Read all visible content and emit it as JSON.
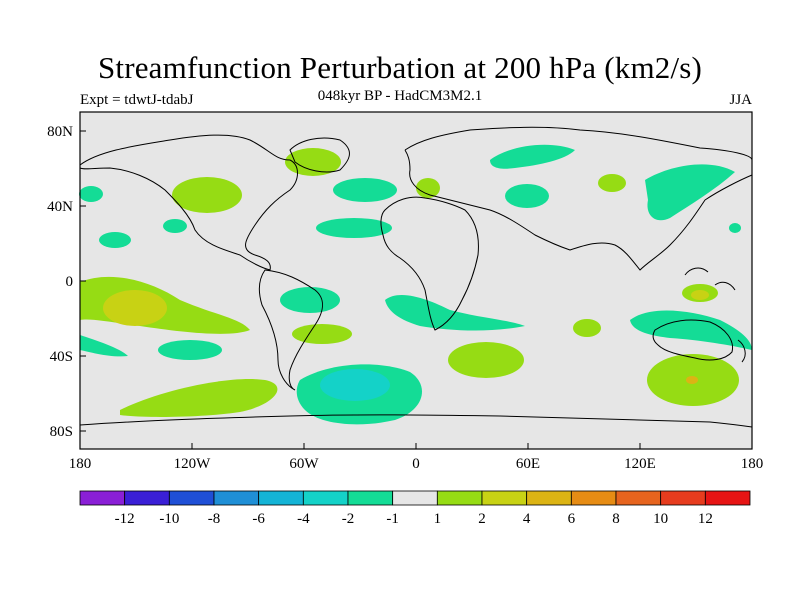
{
  "title": "Streamfunction Perturbation at 200 hPa (km2/s)",
  "subtitle_left": "Expt = tdwtJ-tdabJ",
  "subtitle_center": "048kyr BP - HadCM3M2.1",
  "subtitle_right": "JJA",
  "lat_labels": [
    "80N",
    "40N",
    "0",
    "40S",
    "80S"
  ],
  "lon_labels": [
    "180",
    "120W",
    "60W",
    "0",
    "60E",
    "120E",
    "180"
  ],
  "colorbar": {
    "labels": [
      "-12",
      "-10",
      "-8",
      "-6",
      "-4",
      "-2",
      "-1",
      "1",
      "2",
      "4",
      "6",
      "8",
      "10",
      "12"
    ],
    "colors": [
      "#8a1fd6",
      "#3a1fd6",
      "#1f4fd6",
      "#1f8fd6",
      "#14b4d6",
      "#14d2c8",
      "#14dc96",
      "#e6e6e6",
      "#96dc14",
      "#c8d214",
      "#dcb414",
      "#e68c14",
      "#e6641e",
      "#e63c1e",
      "#e61414"
    ]
  },
  "fill_colors": {
    "background": "#e6e6e6",
    "pos1": "#96dc14",
    "pos2": "#c8d214",
    "pos3": "#dcb414",
    "neg1": "#14dc96",
    "neg2": "#14d2c8"
  }
}
